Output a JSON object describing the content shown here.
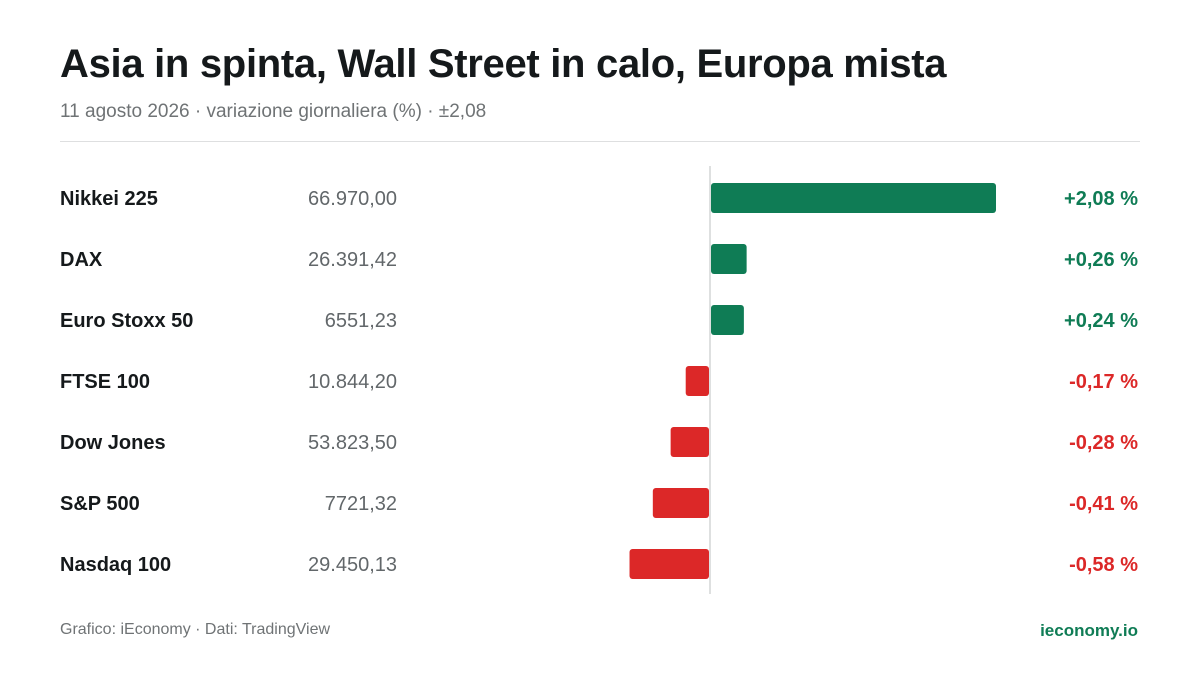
{
  "header": {
    "title": "Asia in spinta, Wall Street in calo, Europa mista",
    "subtitle": "11 agosto 2026 · variazione giornaliera (%) · ±2,08"
  },
  "footer": {
    "credit": "Grafico: iEconomy · Dati: TradingView",
    "brand": "ieconomy.io"
  },
  "colors": {
    "positive": "#0f7c55",
    "negative": "#dc2828",
    "label": "#15191b",
    "value": "#62676a",
    "axis": "#d4d5d6"
  },
  "chart_data": {
    "type": "bar",
    "orientation": "horizontal",
    "xlim": [
      -2.08,
      2.08
    ],
    "categories": [
      "Nikkei 225",
      "DAX",
      "Euro Stoxx 50",
      "FTSE 100",
      "Dow Jones",
      "S&P 500",
      "Nasdaq 100"
    ],
    "levels": [
      "66.970,00",
      "26.391,42",
      "6551,23",
      "10.844,20",
      "53.823,50",
      "7721,32",
      "29.450,13"
    ],
    "values": [
      2.08,
      0.26,
      0.24,
      -0.17,
      -0.28,
      -0.41,
      -0.58
    ],
    "value_labels": [
      "+2,08 %",
      "+0,26 %",
      "+0,24 %",
      "-0,17 %",
      "-0,28 %",
      "-0,41 %",
      "-0,58 %"
    ]
  }
}
